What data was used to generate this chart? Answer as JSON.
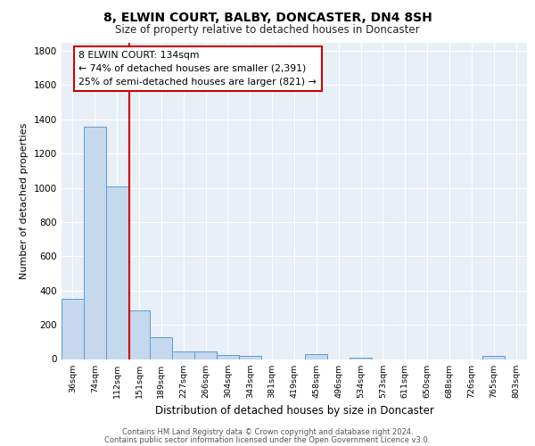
{
  "title": "8, ELWIN COURT, BALBY, DONCASTER, DN4 8SH",
  "subtitle": "Size of property relative to detached houses in Doncaster",
  "xlabel": "Distribution of detached houses by size in Doncaster",
  "ylabel": "Number of detached properties",
  "categories": [
    "36sqm",
    "74sqm",
    "112sqm",
    "151sqm",
    "189sqm",
    "227sqm",
    "266sqm",
    "304sqm",
    "343sqm",
    "381sqm",
    "419sqm",
    "458sqm",
    "496sqm",
    "534sqm",
    "573sqm",
    "611sqm",
    "650sqm",
    "688sqm",
    "726sqm",
    "765sqm",
    "803sqm"
  ],
  "values": [
    350,
    1360,
    1010,
    285,
    130,
    43,
    43,
    25,
    18,
    0,
    0,
    28,
    0,
    10,
    0,
    0,
    0,
    0,
    0,
    18,
    0
  ],
  "bar_color": "#c5d8ed",
  "bar_edge_color": "#5b9bd5",
  "vline_color": "#cc0000",
  "annotation_text": "8 ELWIN COURT: 134sqm\n← 74% of detached houses are smaller (2,391)\n25% of semi-detached houses are larger (821) →",
  "annotation_box_facecolor": "#ffffff",
  "annotation_edge_color": "#cc0000",
  "ylim": [
    0,
    1850
  ],
  "yticks": [
    0,
    200,
    400,
    600,
    800,
    1000,
    1200,
    1400,
    1600,
    1800
  ],
  "plot_bg_color": "#e8eff7",
  "grid_color": "#ffffff",
  "fig_bg_color": "#ffffff",
  "footer_line1": "Contains HM Land Registry data © Crown copyright and database right 2024.",
  "footer_line2": "Contains public sector information licensed under the Open Government Licence v3.0."
}
